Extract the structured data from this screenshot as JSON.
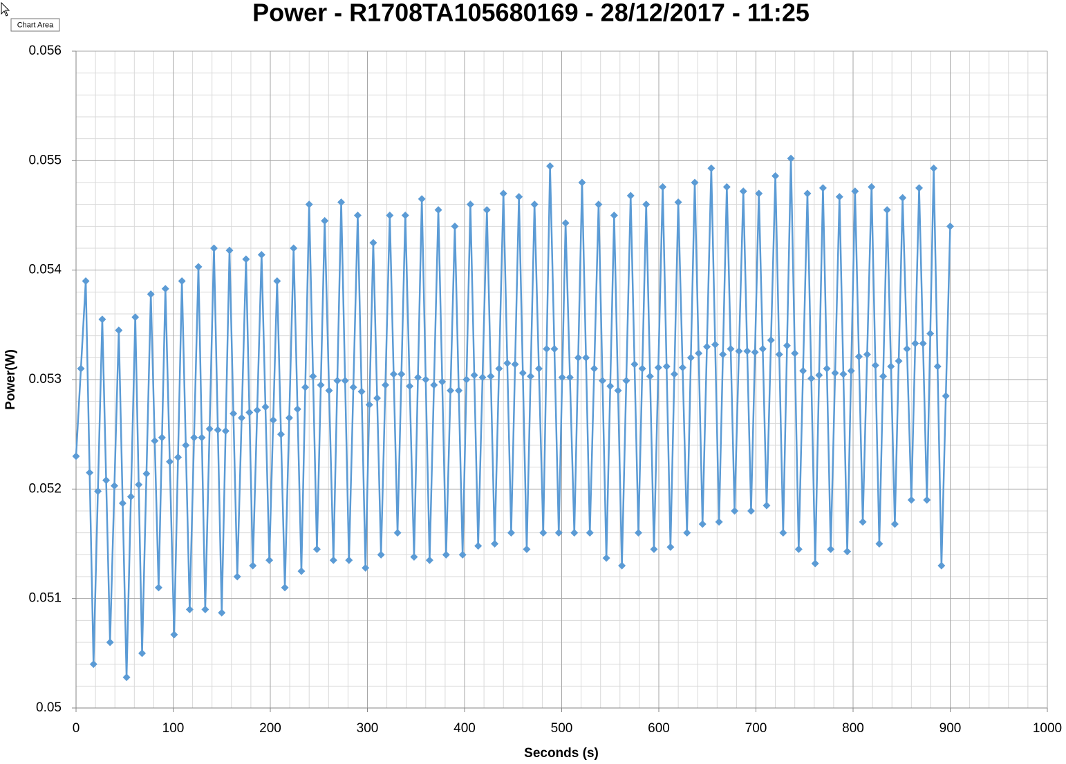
{
  "tooltip": "Chart Area",
  "chart_data": {
    "type": "line",
    "title": "Power - R1708TA105680169 - 28/12/2017 - 11:25",
    "x_label": "Seconds (s)",
    "y_label": "Power(W)",
    "color": "#5b9bd5",
    "marker": "diamond",
    "grid": true,
    "xlim": [
      0,
      1000
    ],
    "xticks": [
      0,
      100,
      200,
      300,
      400,
      500,
      600,
      700,
      800,
      900,
      1000
    ],
    "xminorticks": [
      20,
      40,
      60,
      80,
      120,
      140,
      160,
      180,
      220,
      240,
      260,
      280,
      320,
      340,
      360,
      380,
      420,
      440,
      460,
      480,
      520,
      540,
      560,
      580,
      620,
      640,
      660,
      680,
      720,
      740,
      760,
      780,
      820,
      840,
      860,
      880,
      920,
      940,
      960,
      980
    ],
    "ylim": [
      0.05,
      0.056
    ],
    "yticks": [
      0.05,
      0.051,
      0.052,
      0.053,
      0.054,
      0.055,
      0.056
    ],
    "yminorticks": [
      0.0502,
      0.0504,
      0.0506,
      0.0508,
      0.0512,
      0.0514,
      0.0516,
      0.0518,
      0.0522,
      0.0524,
      0.0526,
      0.0528,
      0.0532,
      0.0534,
      0.0536,
      0.0538,
      0.0542,
      0.0544,
      0.0546,
      0.0548,
      0.0552,
      0.0554,
      0.0556,
      0.0558
    ],
    "x": [
      0,
      5,
      10,
      14,
      18,
      22.5,
      27,
      31,
      35,
      39.5,
      44,
      48,
      52,
      56.5,
      61,
      64.5,
      68,
      72.5,
      77,
      81,
      85,
      88.5,
      92,
      96.5,
      101,
      105,
      109,
      113,
      117,
      121.5,
      126,
      129.5,
      133,
      137.5,
      142,
      146,
      150,
      154,
      158,
      162,
      166,
      170.5,
      175,
      178.5,
      182,
      186.5,
      191,
      195,
      199,
      203,
      207,
      211,
      215,
      219.5,
      224,
      228,
      232,
      236,
      240,
      244,
      248,
      252,
      256,
      260.5,
      265,
      269,
      273,
      277,
      281,
      285.5,
      290,
      294,
      298,
      302,
      306,
      310,
      314,
      318.5,
      323,
      327,
      331,
      335,
      339,
      343.5,
      348,
      352,
      356,
      360,
      364,
      368.5,
      373,
      377,
      381,
      385.5,
      390,
      394,
      398,
      402,
      406,
      410,
      414,
      418.5,
      423,
      427,
      431,
      435.5,
      440,
      444,
      448,
      452,
      456,
      460,
      464,
      468,
      472,
      476.5,
      481,
      484.5,
      488,
      492.5,
      497,
      500.5,
      504,
      508.5,
      513,
      517,
      521,
      525,
      529,
      533.5,
      538,
      542,
      546,
      550,
      554,
      558,
      562,
      566.5,
      571,
      575,
      579,
      583,
      587,
      591,
      595,
      599.5,
      604,
      608,
      612,
      616,
      620,
      624.5,
      629,
      633,
      637,
      641,
      645,
      649.5,
      654,
      658,
      662,
      666,
      670,
      674,
      678,
      682.5,
      687,
      691,
      695,
      699,
      703,
      707,
      711,
      715.5,
      720,
      724,
      728,
      732,
      736,
      740,
      744,
      748.5,
      753,
      757,
      761,
      765,
      769,
      773,
      777,
      781.5,
      786,
      790,
      794,
      798,
      802,
      806,
      810,
      814.5,
      819,
      823,
      827,
      831,
      835,
      839,
      843,
      847,
      851,
      855.5,
      860,
      864,
      868,
      872,
      876,
      879.5,
      883,
      887,
      891,
      895.5,
      900
    ],
    "values": [
      0.0523,
      0.0531,
      0.0539,
      0.05215,
      0.0504,
      0.05198,
      0.05355,
      0.05208,
      0.0506,
      0.05203,
      0.05345,
      0.05187,
      0.05028,
      0.05193,
      0.05357,
      0.05204,
      0.0505,
      0.05214,
      0.05378,
      0.05244,
      0.0511,
      0.05247,
      0.05383,
      0.05225,
      0.05067,
      0.05229,
      0.0539,
      0.0524,
      0.0509,
      0.05247,
      0.05403,
      0.05247,
      0.0509,
      0.05255,
      0.0542,
      0.05254,
      0.05087,
      0.05253,
      0.05418,
      0.05269,
      0.0512,
      0.05265,
      0.0541,
      0.0527,
      0.0513,
      0.05272,
      0.05414,
      0.05275,
      0.05135,
      0.05263,
      0.0539,
      0.0525,
      0.0511,
      0.05265,
      0.0542,
      0.05273,
      0.05125,
      0.05293,
      0.0546,
      0.05303,
      0.05145,
      0.05295,
      0.05445,
      0.0529,
      0.05135,
      0.05299,
      0.05462,
      0.05299,
      0.05135,
      0.05293,
      0.0545,
      0.05289,
      0.05128,
      0.05277,
      0.05425,
      0.05283,
      0.0514,
      0.05295,
      0.0545,
      0.05305,
      0.0516,
      0.05305,
      0.0545,
      0.05294,
      0.05138,
      0.05302,
      0.05465,
      0.053,
      0.05135,
      0.05295,
      0.05455,
      0.05298,
      0.0514,
      0.0529,
      0.0544,
      0.0529,
      0.0514,
      0.053,
      0.0546,
      0.05304,
      0.05148,
      0.05302,
      0.05455,
      0.05303,
      0.0515,
      0.0531,
      0.0547,
      0.05315,
      0.0516,
      0.05314,
      0.05467,
      0.05306,
      0.05145,
      0.05303,
      0.0546,
      0.0531,
      0.0516,
      0.05328,
      0.05495,
      0.05328,
      0.0516,
      0.05302,
      0.05443,
      0.05302,
      0.0516,
      0.0532,
      0.0548,
      0.0532,
      0.0516,
      0.0531,
      0.0546,
      0.05299,
      0.05137,
      0.05294,
      0.0545,
      0.0529,
      0.0513,
      0.05299,
      0.05468,
      0.05314,
      0.0516,
      0.0531,
      0.0546,
      0.05303,
      0.05145,
      0.05311,
      0.05476,
      0.05312,
      0.05147,
      0.05305,
      0.05462,
      0.05311,
      0.0516,
      0.0532,
      0.0548,
      0.05324,
      0.05168,
      0.0533,
      0.05493,
      0.05332,
      0.0517,
      0.05323,
      0.05476,
      0.05328,
      0.0518,
      0.05326,
      0.05472,
      0.05326,
      0.0518,
      0.05325,
      0.0547,
      0.05328,
      0.05185,
      0.05336,
      0.05486,
      0.05323,
      0.0516,
      0.05331,
      0.05502,
      0.05324,
      0.05145,
      0.05308,
      0.0547,
      0.05301,
      0.05132,
      0.05304,
      0.05475,
      0.0531,
      0.05145,
      0.05306,
      0.05467,
      0.05305,
      0.05143,
      0.05308,
      0.05472,
      0.05321,
      0.0517,
      0.05323,
      0.05476,
      0.05313,
      0.0515,
      0.05303,
      0.05455,
      0.05312,
      0.05168,
      0.05317,
      0.05466,
      0.05328,
      0.0519,
      0.05333,
      0.05475,
      0.05333,
      0.0519,
      0.05342,
      0.05493,
      0.05312,
      0.0513,
      0.05285,
      0.0544
    ]
  }
}
